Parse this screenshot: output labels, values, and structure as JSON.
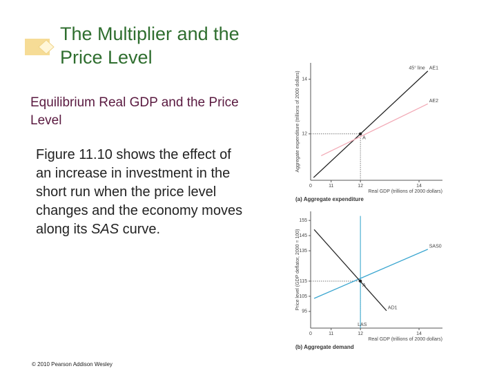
{
  "slide": {
    "title": "The Multiplier and the Price Level",
    "subtitle": "Equilibrium Real GDP and the Price Level",
    "body": [
      "Figure 11.10 shows the effect of an increase in investment in the short run when the price level changes and the economy moves along its ",
      "SAS",
      " curve."
    ],
    "footer": "© 2010 Pearson Addison Wesley"
  },
  "chart_data": [
    {
      "type": "line",
      "title": "(a) Aggregate expenditure",
      "xlabel": "Real GDP (trillions of 2000 dollars)",
      "ylabel": "Aggregate expenditure (trillions of 2000 dollars)",
      "origin_label": "0",
      "annotation": "45° line",
      "xlim": [
        10.3,
        14.8
      ],
      "ylim": [
        10.3,
        14.6
      ],
      "xticks": [
        11,
        12,
        14
      ],
      "yticks": [
        12,
        14
      ],
      "series": [
        {
          "name": "AE1",
          "color": "#222222",
          "x": [
            10.4,
            14.3
          ],
          "values": [
            10.4,
            14.3
          ]
        },
        {
          "name": "AE2",
          "color": "#f2aab6",
          "x": [
            10.66,
            14.3
          ],
          "values": [
            11.2,
            13.1
          ]
        }
      ],
      "points": [
        {
          "label": "A",
          "x": 12,
          "y": 12
        }
      ]
    },
    {
      "type": "line",
      "title": "(b) Aggregate demand",
      "xlabel": "Real GDP (trillions of 2000 dollars)",
      "ylabel": "Price level (GDP deflator, 2000 = 100)",
      "origin_label": "0",
      "xlim": [
        10.3,
        14.8
      ],
      "ylim": [
        84,
        161
      ],
      "xticks": [
        11,
        12,
        14
      ],
      "yticks": [
        95,
        105,
        115,
        135,
        145,
        155
      ],
      "series": [
        {
          "name": "LAS",
          "color": "#5bb7d6",
          "x": [
            12,
            12
          ],
          "values": [
            158,
            84
          ]
        },
        {
          "name": "SAS0",
          "color": "#3aa6d0",
          "x": [
            10.42,
            14.3
          ],
          "values": [
            103.6,
            136
          ]
        },
        {
          "name": "AD1",
          "color": "#2a2a2a",
          "x": [
            10.42,
            12.89
          ],
          "values": [
            149,
            95.5
          ]
        }
      ],
      "points": [
        {
          "label": "A",
          "x": 12,
          "y": 115
        }
      ]
    }
  ]
}
